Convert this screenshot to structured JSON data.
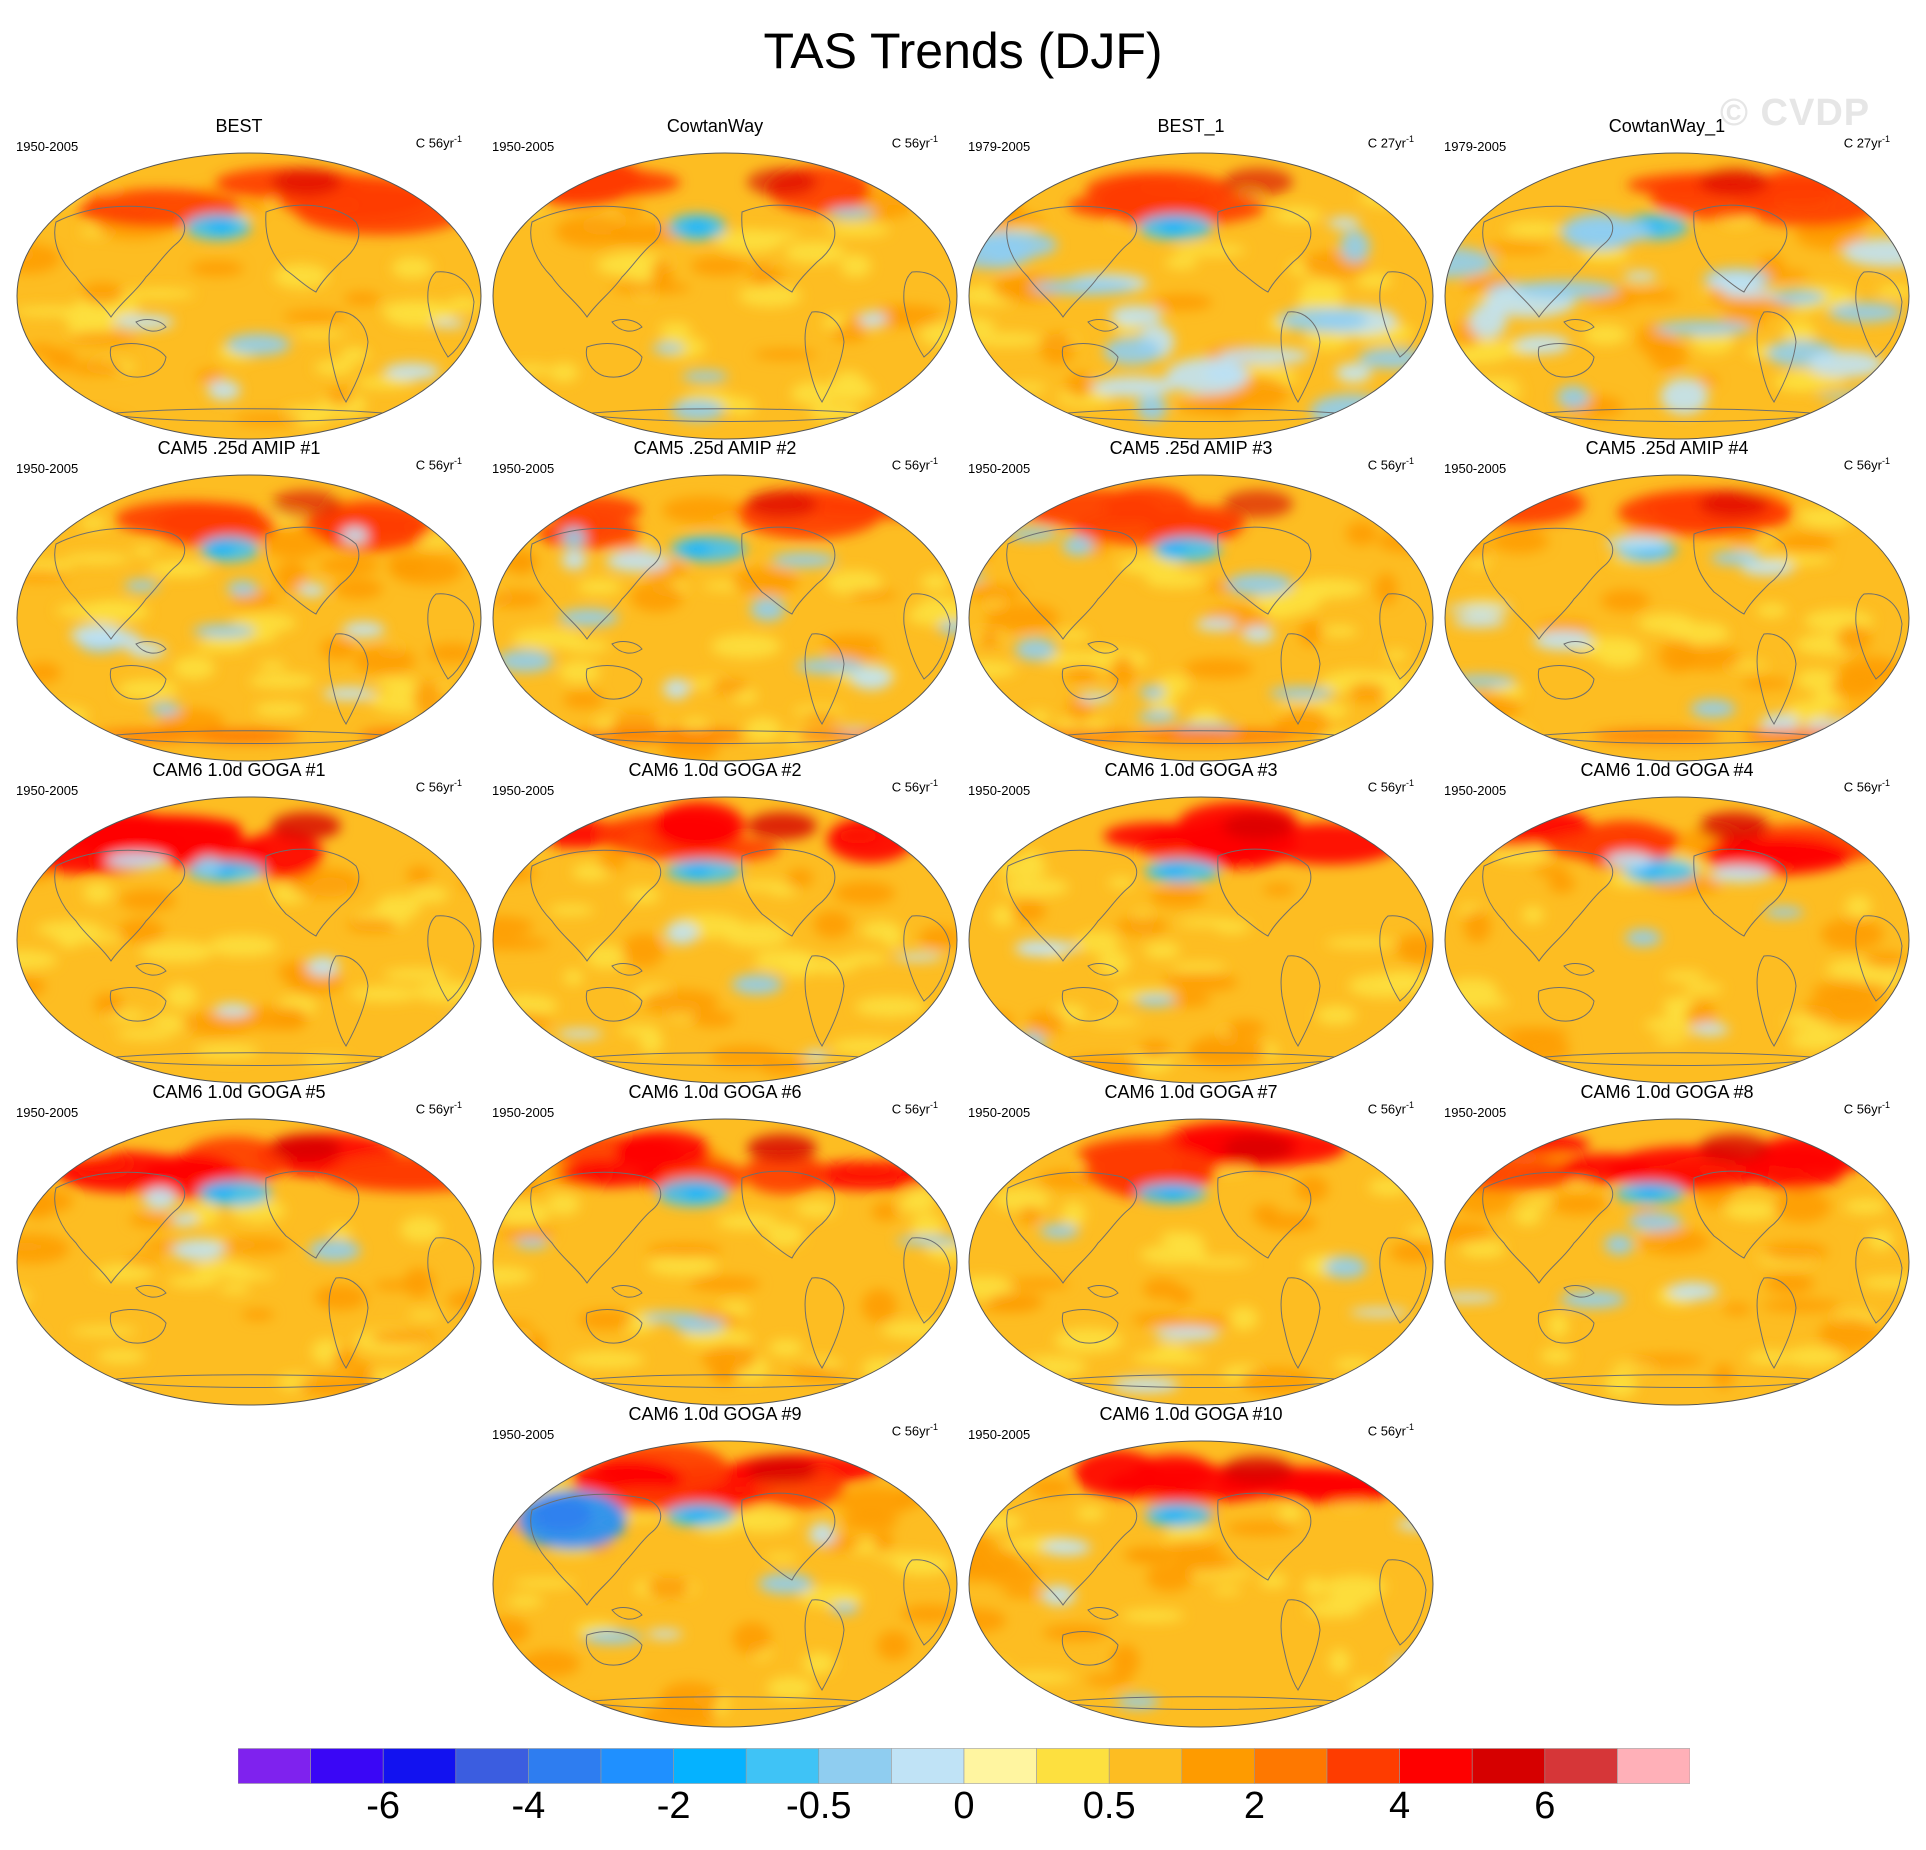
{
  "title": "TAS Trends (DJF)",
  "watermark": "© CVDP",
  "panels": [
    {
      "title": "BEST",
      "period": "1950-2005",
      "units_prefix": "C 56yr",
      "units_exp": "-1"
    },
    {
      "title": "CowtanWay",
      "period": "1950-2005",
      "units_prefix": "C 56yr",
      "units_exp": "-1"
    },
    {
      "title": "BEST_1",
      "period": "1979-2005",
      "units_prefix": "C 27yr",
      "units_exp": "-1"
    },
    {
      "title": "CowtanWay_1",
      "period": "1979-2005",
      "units_prefix": "C 27yr",
      "units_exp": "-1"
    },
    {
      "title": "CAM5 .25d AMIP #1",
      "period": "1950-2005",
      "units_prefix": "C 56yr",
      "units_exp": "-1"
    },
    {
      "title": "CAM5 .25d AMIP #2",
      "period": "1950-2005",
      "units_prefix": "C 56yr",
      "units_exp": "-1"
    },
    {
      "title": "CAM5 .25d AMIP #3",
      "period": "1950-2005",
      "units_prefix": "C 56yr",
      "units_exp": "-1"
    },
    {
      "title": "CAM5 .25d AMIP #4",
      "period": "1950-2005",
      "units_prefix": "C 56yr",
      "units_exp": "-1"
    },
    {
      "title": "CAM6 1.0d GOGA #1",
      "period": "1950-2005",
      "units_prefix": "C 56yr",
      "units_exp": "-1"
    },
    {
      "title": "CAM6 1.0d GOGA #2",
      "period": "1950-2005",
      "units_prefix": "C 56yr",
      "units_exp": "-1"
    },
    {
      "title": "CAM6 1.0d GOGA #3",
      "period": "1950-2005",
      "units_prefix": "C 56yr",
      "units_exp": "-1"
    },
    {
      "title": "CAM6 1.0d GOGA #4",
      "period": "1950-2005",
      "units_prefix": "C 56yr",
      "units_exp": "-1"
    },
    {
      "title": "CAM6 1.0d GOGA #5",
      "period": "1950-2005",
      "units_prefix": "C 56yr",
      "units_exp": "-1"
    },
    {
      "title": "CAM6 1.0d GOGA #6",
      "period": "1950-2005",
      "units_prefix": "C 56yr",
      "units_exp": "-1"
    },
    {
      "title": "CAM6 1.0d GOGA #7",
      "period": "1950-2005",
      "units_prefix": "C 56yr",
      "units_exp": "-1"
    },
    {
      "title": "CAM6 1.0d GOGA #8",
      "period": "1950-2005",
      "units_prefix": "C 56yr",
      "units_exp": "-1"
    },
    {
      "title": "CAM6 1.0d GOGA #9",
      "period": "1950-2005",
      "units_prefix": "C 56yr",
      "units_exp": "-1"
    },
    {
      "title": "CAM6 1.0d GOGA #10",
      "period": "1950-2005",
      "units_prefix": "C 56yr",
      "units_exp": "-1"
    }
  ],
  "colorbar": {
    "colors": [
      "#7f22ee",
      "#3a06f6",
      "#1212f0",
      "#3b5de0",
      "#2e7df0",
      "#1f90ff",
      "#05b2ff",
      "#3fc3f6",
      "#8fcdf0",
      "#c0e3f6",
      "#fff5a0",
      "#fde03f",
      "#fdbd22",
      "#fe9b00",
      "#fe7800",
      "#fe3c00",
      "#fe0000",
      "#d60000",
      "#d63638",
      "#ffb0b8"
    ],
    "tick_labels": [
      "-6",
      "-4",
      "-2",
      "-0.5",
      "0",
      "0.5",
      "2",
      "4",
      "6"
    ],
    "tick_boundaries": [
      2,
      4,
      6,
      8,
      10,
      12,
      14,
      16,
      18
    ]
  },
  "chart_data": {
    "type": "heatmap",
    "title": "TAS Trends (DJF)",
    "variable": "TAS",
    "season": "DJF",
    "projection": "Robinson (global)",
    "contour_levels": [
      -8,
      -7,
      -6,
      -5,
      -4,
      -3,
      -2,
      -1,
      -0.5,
      -0.25,
      0,
      0.25,
      0.5,
      1,
      2,
      3,
      4,
      5,
      6,
      7,
      8
    ],
    "colorbar_labels": [
      "-6",
      "-4",
      "-2",
      "-0.5",
      "0",
      "0.5",
      "2",
      "4",
      "6"
    ],
    "panels": [
      "BEST",
      "CowtanWay",
      "BEST_1",
      "CowtanWay_1",
      "CAM5 .25d AMIP #1",
      "CAM5 .25d AMIP #2",
      "CAM5 .25d AMIP #3",
      "CAM5 .25d AMIP #4",
      "CAM6 1.0d GOGA #1",
      "CAM6 1.0d GOGA #2",
      "CAM6 1.0d GOGA #3",
      "CAM6 1.0d GOGA #4",
      "CAM6 1.0d GOGA #5",
      "CAM6 1.0d GOGA #6",
      "CAM6 1.0d GOGA #7",
      "CAM6 1.0d GOGA #8",
      "CAM6 1.0d GOGA #9",
      "CAM6 1.0d GOGA #10"
    ],
    "periods": [
      "1950-2005",
      "1950-2005",
      "1979-2005",
      "1979-2005",
      "1950-2005",
      "1950-2005",
      "1950-2005",
      "1950-2005",
      "1950-2005",
      "1950-2005",
      "1950-2005",
      "1950-2005",
      "1950-2005",
      "1950-2005",
      "1950-2005",
      "1950-2005",
      "1950-2005",
      "1950-2005"
    ]
  }
}
